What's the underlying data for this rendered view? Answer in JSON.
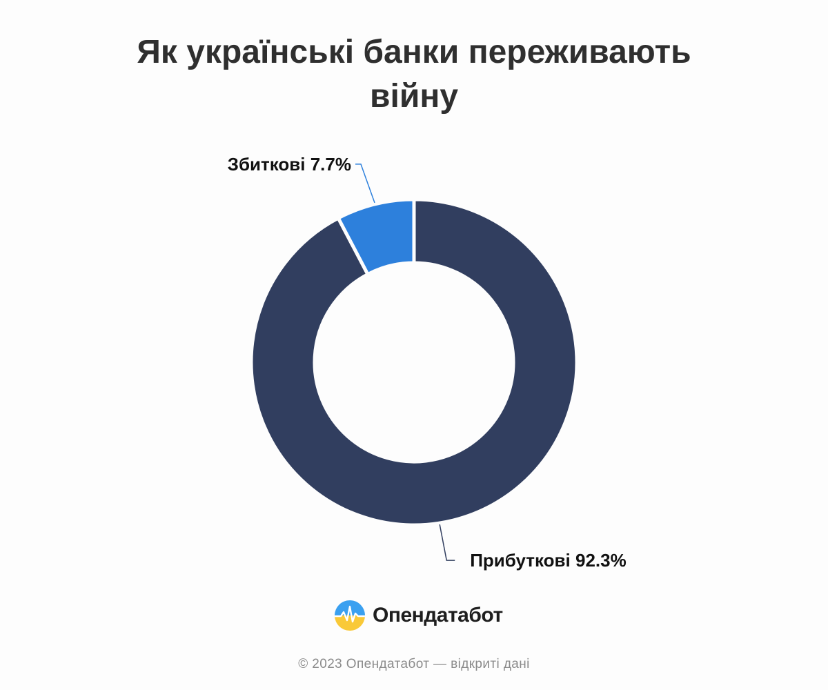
{
  "chart_data": {
    "type": "pie",
    "title": "Як українські банки переживають війну",
    "slices": [
      {
        "label": "Прибуткові",
        "value": 92.3,
        "value_label": "92.3%",
        "color": "#313e5f"
      },
      {
        "label": "Збиткові",
        "value": 7.7,
        "value_label": "7.7%",
        "color": "#2d80dc"
      }
    ],
    "donut": true
  },
  "brand": {
    "name": "Опендатабот",
    "logo_icon": "opendatabot-logo-icon"
  },
  "footer": {
    "text": "© 2023 Опендатабот — відкриті дані"
  }
}
